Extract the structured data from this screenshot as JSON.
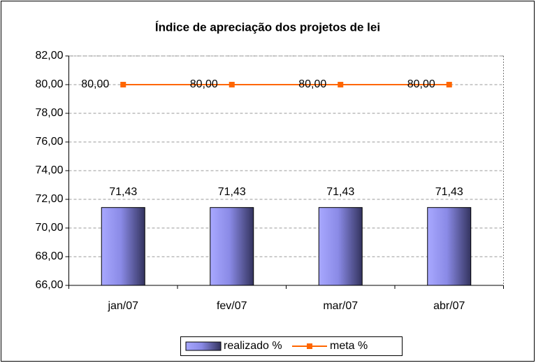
{
  "chart_data": {
    "type": "bar_line",
    "title": "Índice de apreciação dos projetos de lei",
    "categories": [
      "jan/07",
      "fev/07",
      "mar/07",
      "abr/07"
    ],
    "series": [
      {
        "name": "realizado %",
        "type": "bar",
        "color": "#9999ff",
        "values": [
          71.43,
          71.43,
          71.43,
          71.43
        ],
        "value_labels": [
          "71,43",
          "71,43",
          "71,43",
          "71,43"
        ]
      },
      {
        "name": "meta %",
        "type": "line",
        "color": "#ff6600",
        "values": [
          80,
          80,
          80,
          80
        ],
        "value_labels": [
          "80,00",
          "80,00",
          "80,00",
          "80,00"
        ]
      }
    ],
    "ylim": [
      66,
      82
    ],
    "yticks": [
      {
        "value": 66,
        "label": "66,00"
      },
      {
        "value": 68,
        "label": "68,00"
      },
      {
        "value": 70,
        "label": "70,00"
      },
      {
        "value": 72,
        "label": "72,00"
      },
      {
        "value": 74,
        "label": "74,00"
      },
      {
        "value": 76,
        "label": "76,00"
      },
      {
        "value": 78,
        "label": "78,00"
      },
      {
        "value": 80,
        "label": "80,00"
      },
      {
        "value": 82,
        "label": "82,00"
      }
    ],
    "grid": true,
    "legend": "bottom"
  }
}
